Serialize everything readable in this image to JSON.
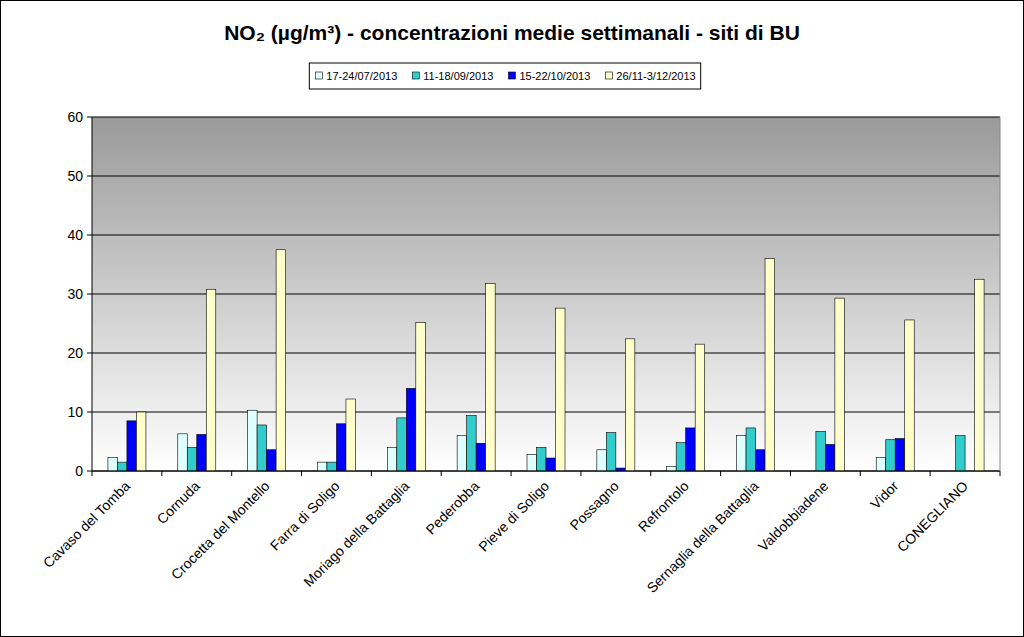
{
  "chart_data": {
    "type": "bar",
    "title": "NO₂ (µg/m³) - concentrazioni medie settimanali - siti di BU",
    "categories": [
      "Cavaso del Tomba",
      "Cornuda",
      "Crocetta del Montello",
      "Farra di Soligo",
      "Moriago della Battaglia",
      "Pederobba",
      "Pieve di Soligo",
      "Possagno",
      "Refrontolo",
      "Sernaglia della Battaglia",
      "Valdobbiadene",
      "Vidor",
      "CONEGLIANO"
    ],
    "series": [
      {
        "name": "17-24/07/2013",
        "color": "#e0ffff",
        "values": [
          2.3,
          6.3,
          10.3,
          1.5,
          4,
          6,
          2.8,
          3.6,
          0.8,
          6,
          null,
          2.3,
          null
        ]
      },
      {
        "name": "11-18/09/2013",
        "color": "#33cccc",
        "values": [
          1.5,
          4,
          7.8,
          1.5,
          9,
          9.4,
          4,
          6.5,
          4.8,
          7.3,
          6.7,
          5.3,
          6
        ]
      },
      {
        "name": "15-22/10/2013",
        "color": "#0000ff",
        "values": [
          8.5,
          6.2,
          3.6,
          8,
          14,
          4.7,
          2.2,
          0.5,
          7.3,
          3.6,
          4.5,
          5.5,
          null
        ]
      },
      {
        "name": "26/11-3/12/2013",
        "color": "#ffffcc",
        "values": [
          10,
          30.8,
          37.5,
          12.2,
          25.2,
          31.8,
          27.6,
          22.4,
          21.5,
          36,
          29.3,
          25.6,
          32.5
        ]
      }
    ],
    "ylim": [
      0,
      60
    ],
    "yticks": [
      0,
      10,
      20,
      30,
      40,
      50,
      60
    ],
    "grid": true,
    "legend": "top"
  }
}
